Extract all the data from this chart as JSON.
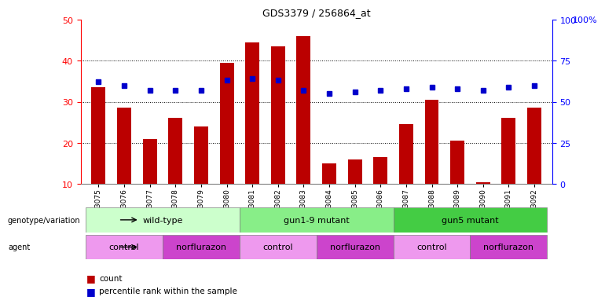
{
  "title": "GDS3379 / 256864_at",
  "samples": [
    "GSM323075",
    "GSM323076",
    "GSM323077",
    "GSM323078",
    "GSM323079",
    "GSM323080",
    "GSM323081",
    "GSM323082",
    "GSM323083",
    "GSM323084",
    "GSM323085",
    "GSM323086",
    "GSM323087",
    "GSM323088",
    "GSM323089",
    "GSM323090",
    "GSM323091",
    "GSM323092"
  ],
  "counts": [
    33.5,
    28.5,
    21.0,
    26.0,
    24.0,
    39.5,
    44.5,
    43.5,
    46.0,
    15.0,
    16.0,
    16.5,
    24.5,
    30.5,
    20.5,
    10.5,
    26.0,
    28.5
  ],
  "percentile_ranks": [
    62,
    60,
    57,
    57,
    57,
    63,
    64,
    63,
    57,
    55,
    56,
    57,
    58,
    59,
    58,
    57,
    59,
    60
  ],
  "ylim_left": [
    10,
    50
  ],
  "ylim_right": [
    0,
    100
  ],
  "yticks_left": [
    10,
    20,
    30,
    40,
    50
  ],
  "yticks_right": [
    0,
    25,
    50,
    75,
    100
  ],
  "bar_color": "#bb0000",
  "dot_color": "#0000cc",
  "groups": [
    {
      "label": "wild-type",
      "start": 0,
      "end": 6,
      "color": "#ccffcc"
    },
    {
      "label": "gun1-9 mutant",
      "start": 6,
      "end": 12,
      "color": "#88ee88"
    },
    {
      "label": "gun5 mutant",
      "start": 12,
      "end": 18,
      "color": "#44cc44"
    }
  ],
  "agents": [
    {
      "label": "control",
      "start": 0,
      "end": 3,
      "color": "#ee99ee"
    },
    {
      "label": "norflurazon",
      "start": 3,
      "end": 6,
      "color": "#cc44cc"
    },
    {
      "label": "control",
      "start": 6,
      "end": 9,
      "color": "#ee99ee"
    },
    {
      "label": "norflurazon",
      "start": 9,
      "end": 12,
      "color": "#cc44cc"
    },
    {
      "label": "control",
      "start": 12,
      "end": 15,
      "color": "#ee99ee"
    },
    {
      "label": "norflurazon",
      "start": 15,
      "end": 18,
      "color": "#cc44cc"
    }
  ]
}
